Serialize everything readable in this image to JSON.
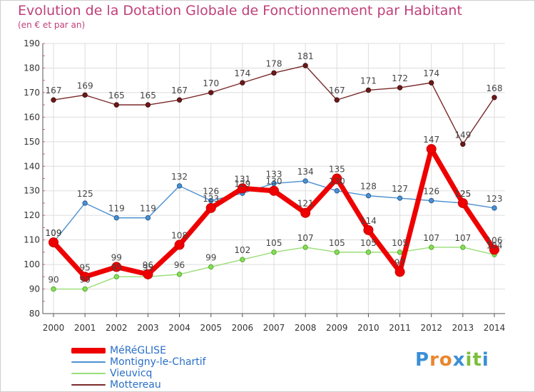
{
  "title": "Evolution de la Dotation Globale de Fonctionnement par Habitant",
  "subtitle": "(en € et par an)",
  "brand": {
    "text": "Proxiti",
    "colors": [
      "#3a8fd6",
      "#e8872f",
      "#e8872f",
      "#3a8fd6",
      "#7cbf3b",
      "#7cbf3b",
      "#3a8fd6"
    ]
  },
  "chart_data": {
    "type": "line",
    "title": "Evolution de la Dotation Globale de Fonctionnement par Habitant",
    "subtitle": "(en € et par an)",
    "xlabel": "",
    "ylabel": "",
    "x": [
      "2000",
      "2001",
      "2002",
      "2003",
      "2004",
      "2005",
      "2006",
      "2007",
      "2008",
      "2009",
      "2010",
      "2011",
      "2012",
      "2013",
      "2014"
    ],
    "ylim": [
      80,
      190
    ],
    "yticks": [
      80,
      90,
      100,
      110,
      120,
      130,
      140,
      150,
      160,
      170,
      180,
      190
    ],
    "legend_position": "bottom-left",
    "series": [
      {
        "name": "MéRéGLISE",
        "color": "#ee0000",
        "values": [
          109,
          95,
          99,
          96,
          108,
          123,
          131,
          130,
          121,
          135,
          114,
          97,
          147,
          125,
          106
        ]
      },
      {
        "name": "Montigny-le-Chartif",
        "color": "#4a90d0",
        "values": [
          109,
          125,
          119,
          119,
          132,
          126,
          129,
          133,
          134,
          130,
          128,
          127,
          126,
          125,
          123
        ]
      },
      {
        "name": "Vieuvicq",
        "color": "#99dd77",
        "values": [
          90,
          90,
          95,
          95,
          96,
          99,
          102,
          105,
          107,
          105,
          105,
          105,
          107,
          107,
          104
        ]
      },
      {
        "name": "Mottereau",
        "color": "#7a2a2a",
        "values": [
          167,
          169,
          165,
          165,
          167,
          170,
          174,
          178,
          181,
          167,
          171,
          172,
          174,
          149,
          168
        ]
      }
    ]
  }
}
